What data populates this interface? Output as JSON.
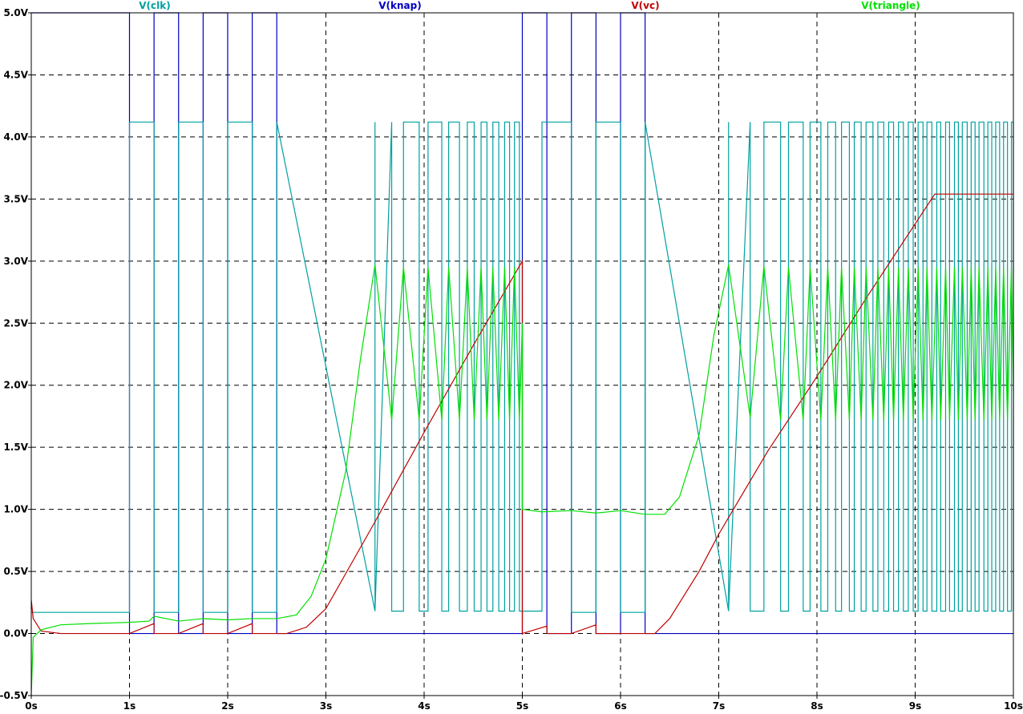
{
  "chart_data": {
    "type": "line",
    "title": "",
    "xlabel": "",
    "ylabel": "",
    "xlim": [
      0,
      10
    ],
    "ylim": [
      -0.5,
      5.0
    ],
    "x_ticks": [
      0,
      1,
      2,
      3,
      4,
      5,
      6,
      7,
      8,
      9,
      10
    ],
    "x_tick_labels": [
      "0s",
      "1s",
      "2s",
      "3s",
      "4s",
      "5s",
      "6s",
      "7s",
      "8s",
      "9s",
      "10s"
    ],
    "y_ticks": [
      5.0,
      4.5,
      4.0,
      3.5,
      3.0,
      2.5,
      2.0,
      1.5,
      1.0,
      0.5,
      0.0,
      -0.5
    ],
    "y_tick_labels": [
      "5.0V",
      "4.5V",
      "4.0V",
      "3.5V",
      "3.0V",
      "2.5V",
      "2.0V",
      "1.5V",
      "1.0V",
      "0.5V",
      "0.0V",
      "-0.5V"
    ],
    "grid": true,
    "legend_position": "top",
    "series": [
      {
        "name": "V(clk)",
        "color": "#00a0a0",
        "x": [
          0,
          1,
          1,
          1.25,
          1.25,
          1.5,
          1.5,
          1.75,
          1.75,
          2,
          2,
          2.25,
          2.25,
          2.5,
          2.5,
          3.5,
          3.5,
          5.2,
          5.2,
          5.5,
          5.5,
          5.75,
          5.75,
          6,
          6,
          6.25,
          6.25,
          7.1,
          7.1,
          10
        ],
        "values": [
          0.17,
          0.17,
          4.12,
          4.12,
          0.17,
          0.17,
          4.12,
          4.12,
          0.17,
          0.17,
          4.12,
          4.12,
          0.17,
          0.17,
          4.12,
          4.12,
          0.18,
          0.18,
          4.12,
          4.12,
          0.17,
          0.17,
          4.12,
          4.12,
          0.17,
          0.17,
          4.12,
          4.12,
          0.18,
          0.18
        ],
        "burst_segments": [
          {
            "start": 3.5,
            "end": 5.0,
            "low": 0.18,
            "high": 4.12,
            "edges": [
              3.5,
              3.67,
              3.79,
              3.95,
              4.04,
              4.18,
              4.25,
              4.36,
              4.44,
              4.51,
              4.58,
              4.64,
              4.7,
              4.76,
              4.82,
              4.87,
              4.92,
              4.97
            ]
          },
          {
            "start": 7.1,
            "end": 10.0,
            "low": 0.18,
            "high": 4.12,
            "edges": [
              7.1,
              7.32,
              7.46,
              7.63,
              7.71,
              7.86,
              7.93,
              8.04,
              8.11,
              8.19,
              8.25,
              8.33,
              8.38,
              8.45,
              8.5,
              8.57,
              8.62,
              8.68,
              8.73,
              8.78,
              8.83,
              8.88,
              8.93,
              8.98,
              9.03,
              9.08,
              9.12,
              9.17,
              9.22,
              9.26,
              9.31,
              9.35,
              9.4,
              9.44,
              9.48,
              9.53,
              9.57,
              9.61,
              9.65,
              9.7,
              9.74,
              9.78,
              9.82,
              9.86,
              9.9,
              9.94,
              9.98
            ]
          }
        ]
      },
      {
        "name": "V(knap)",
        "color": "#0000c0",
        "x": [
          0,
          1,
          1,
          1.25,
          1.25,
          1.5,
          1.5,
          1.75,
          1.75,
          2,
          2,
          2.25,
          2.25,
          2.5,
          2.5,
          5,
          5,
          5.25,
          5.25,
          5.5,
          5.5,
          5.75,
          5.75,
          6,
          6,
          6.25,
          6.25,
          10
        ],
        "values": [
          5,
          5,
          0,
          0,
          5,
          5,
          0,
          0,
          5,
          5,
          0,
          0,
          5,
          5,
          0,
          0,
          5,
          5,
          0,
          0,
          5,
          5,
          0,
          0,
          5,
          5,
          0,
          0
        ]
      },
      {
        "name": "V(vc)",
        "color": "#c00000",
        "x": [
          0,
          0.02,
          0.1,
          0.3,
          1,
          1.25,
          1.25,
          1.5,
          1.75,
          1.75,
          2,
          2.25,
          2.25,
          2.5,
          2.6,
          2.8,
          3.0,
          3.5,
          4.0,
          4.5,
          5.0,
          5.0,
          5.25,
          5.25,
          5.5,
          5.75,
          5.75,
          6.0,
          6.25,
          6.35,
          6.5,
          6.8,
          7.0,
          7.5,
          8.0,
          8.5,
          9.0,
          9.2,
          10
        ],
        "values": [
          0.27,
          0.12,
          0.02,
          0.0,
          0.0,
          0.08,
          0.0,
          0.0,
          0.08,
          0.0,
          0.0,
          0.08,
          0.0,
          0.0,
          0.0,
          0.05,
          0.2,
          0.9,
          1.62,
          2.32,
          3.0,
          0.0,
          0.06,
          0.0,
          0.0,
          0.07,
          0.0,
          0.0,
          0.0,
          0.0,
          0.12,
          0.5,
          0.8,
          1.47,
          2.07,
          2.7,
          3.3,
          3.54,
          3.54
        ]
      },
      {
        "name": "V(triangle)",
        "color": "#00e000",
        "x": [
          0,
          0.02,
          0.1,
          0.3,
          0.6,
          1.0,
          1.2,
          1.25,
          1.5,
          1.75,
          2.0,
          2.25,
          2.5,
          2.7,
          2.85,
          3.0,
          3.2,
          3.35,
          3.5,
          3.67,
          3.79,
          3.95,
          4.04,
          4.18,
          4.25,
          4.36,
          4.44,
          4.51,
          4.58,
          4.64,
          4.7,
          4.76,
          4.82,
          4.87,
          4.92,
          4.97,
          5.0,
          5.0,
          5.2,
          5.5,
          5.75,
          6.0,
          6.25,
          6.45,
          6.6,
          6.8,
          6.95,
          7.1,
          7.32,
          7.46,
          7.63,
          7.71,
          7.86,
          7.93,
          8.04,
          8.11,
          8.19,
          8.25,
          8.33,
          8.38,
          8.45,
          8.5,
          8.57,
          8.62,
          8.68,
          8.73,
          8.78,
          8.83,
          8.88,
          8.93,
          8.98,
          9.03,
          9.08,
          9.12,
          9.17,
          9.22,
          9.26,
          9.31,
          9.35,
          9.4,
          9.44,
          9.48,
          9.53,
          9.57,
          9.61,
          9.65,
          9.7,
          9.74,
          9.78,
          9.82,
          9.86,
          9.9,
          9.94,
          9.98,
          10.0
        ],
        "values": [
          -0.5,
          -0.03,
          0.03,
          0.07,
          0.08,
          0.09,
          0.1,
          0.14,
          0.1,
          0.12,
          0.11,
          0.12,
          0.12,
          0.15,
          0.3,
          0.6,
          1.3,
          2.2,
          2.97,
          1.72,
          2.95,
          1.72,
          2.95,
          1.72,
          2.95,
          1.72,
          2.95,
          1.72,
          2.95,
          1.72,
          2.95,
          1.72,
          2.95,
          1.72,
          2.95,
          1.72,
          2.5,
          1.0,
          0.98,
          0.99,
          0.97,
          0.99,
          0.96,
          0.96,
          1.1,
          1.6,
          2.4,
          2.97,
          1.74,
          2.96,
          1.72,
          2.95,
          1.72,
          2.95,
          1.72,
          2.95,
          1.72,
          2.95,
          1.72,
          2.95,
          1.72,
          2.95,
          1.72,
          2.95,
          1.72,
          2.95,
          1.72,
          2.95,
          1.72,
          2.95,
          1.72,
          2.95,
          1.72,
          2.95,
          1.72,
          2.95,
          1.72,
          2.95,
          1.72,
          2.95,
          1.72,
          2.95,
          1.72,
          2.95,
          1.72,
          2.95,
          1.72,
          2.95,
          1.72,
          2.95,
          1.72,
          2.95,
          1.72,
          2.95,
          1.95
        ]
      }
    ]
  }
}
